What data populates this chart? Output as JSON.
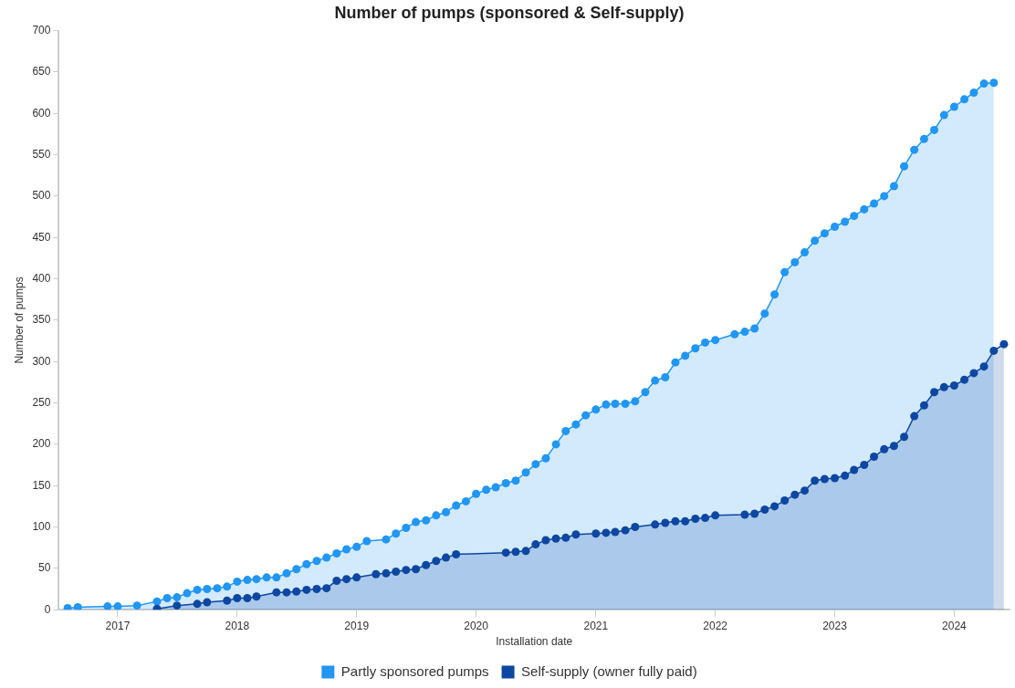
{
  "chart_data": {
    "type": "area",
    "title": "Number of pumps (sponsored & Self-supply)",
    "xlabel": "Installation date",
    "ylabel": "Number of pumps",
    "xlim": [
      "2016-07-05",
      "2024-06-18"
    ],
    "xticks": [
      {
        "value": "2017",
        "label": "2017"
      },
      {
        "value": "2018",
        "label": "2018"
      },
      {
        "value": "2019",
        "label": "2019"
      },
      {
        "value": "2020",
        "label": "2020"
      },
      {
        "value": "2021",
        "label": "2021"
      },
      {
        "value": "2022",
        "label": "2022"
      },
      {
        "value": "2023",
        "label": "2023"
      },
      {
        "value": "2024",
        "label": "2024"
      }
    ],
    "ylim": [
      0,
      700
    ],
    "yticks": [
      0,
      50,
      100,
      150,
      200,
      250,
      300,
      350,
      400,
      450,
      500,
      550,
      600,
      650,
      700
    ],
    "legend": "bottom",
    "marker": "circle",
    "series": [
      {
        "name": "Partly sponsored pumps",
        "color": "#2196f3",
        "x": [
          "2016-08",
          "2016-09",
          "2016-12",
          "2017-01",
          "2017-03",
          "2017-05",
          "2017-06",
          "2017-07",
          "2017-08",
          "2017-09",
          "2017-10",
          "2017-11",
          "2017-12",
          "2018-01",
          "2018-02",
          "2018-03",
          "2018-04",
          "2018-05",
          "2018-06",
          "2018-07",
          "2018-08",
          "2018-09",
          "2018-10",
          "2018-11",
          "2018-12",
          "2019-01",
          "2019-02",
          "2019-04",
          "2019-05",
          "2019-06",
          "2019-07",
          "2019-08",
          "2019-09",
          "2019-10",
          "2019-11",
          "2019-12",
          "2020-01",
          "2020-02",
          "2020-03",
          "2020-04",
          "2020-05",
          "2020-06",
          "2020-07",
          "2020-08",
          "2020-09",
          "2020-10",
          "2020-11",
          "2020-12",
          "2021-01",
          "2021-02",
          "2021-03",
          "2021-04",
          "2021-05",
          "2021-06",
          "2021-07",
          "2021-08",
          "2021-09",
          "2021-10",
          "2021-11",
          "2021-12",
          "2022-01",
          "2022-03",
          "2022-04",
          "2022-05",
          "2022-06",
          "2022-07",
          "2022-08",
          "2022-09",
          "2022-10",
          "2022-11",
          "2022-12",
          "2023-01",
          "2023-02",
          "2023-03",
          "2023-04",
          "2023-05",
          "2023-06",
          "2023-07",
          "2023-08",
          "2023-09",
          "2023-10",
          "2023-11",
          "2023-12",
          "2024-01",
          "2024-02",
          "2024-03",
          "2024-04",
          "2024-05"
        ],
        "values": [
          2,
          3,
          4,
          4,
          5,
          10,
          14,
          15,
          20,
          24,
          25,
          26,
          28,
          34,
          36,
          37,
          39,
          39,
          44,
          49,
          55,
          59,
          63,
          68,
          73,
          76,
          83,
          85,
          92,
          99,
          106,
          108,
          114,
          118,
          126,
          131,
          140,
          145,
          148,
          153,
          156,
          166,
          176,
          183,
          200,
          216,
          224,
          235,
          242,
          248,
          249,
          249,
          252,
          263,
          277,
          281,
          299,
          307,
          316,
          323,
          326,
          333,
          336,
          340,
          358,
          381,
          408,
          420,
          432,
          446,
          455,
          463,
          469,
          476,
          484,
          491,
          500,
          512,
          536,
          556,
          569,
          580,
          598,
          608,
          617,
          625,
          636,
          637
        ]
      },
      {
        "name": "Self-supply (owner fully paid)",
        "color": "#0d47a1",
        "x": [
          "2017-05",
          "2017-07",
          "2017-09",
          "2017-10",
          "2017-12",
          "2018-01",
          "2018-02",
          "2018-03",
          "2018-05",
          "2018-06",
          "2018-07",
          "2018-08",
          "2018-09",
          "2018-10",
          "2018-11",
          "2018-12",
          "2019-01",
          "2019-03",
          "2019-04",
          "2019-05",
          "2019-06",
          "2019-07",
          "2019-08",
          "2019-09",
          "2019-10",
          "2019-11",
          "2020-04",
          "2020-05",
          "2020-06",
          "2020-07",
          "2020-08",
          "2020-09",
          "2020-10",
          "2020-11",
          "2021-01",
          "2021-02",
          "2021-03",
          "2021-04",
          "2021-05",
          "2021-07",
          "2021-08",
          "2021-09",
          "2021-10",
          "2021-11",
          "2021-12",
          "2022-01",
          "2022-04",
          "2022-05",
          "2022-06",
          "2022-07",
          "2022-08",
          "2022-09",
          "2022-10",
          "2022-11",
          "2022-12",
          "2023-01",
          "2023-02",
          "2023-03",
          "2023-04",
          "2023-05",
          "2023-06",
          "2023-07",
          "2023-08",
          "2023-09",
          "2023-10",
          "2023-11",
          "2023-12",
          "2024-01",
          "2024-02",
          "2024-03",
          "2024-04",
          "2024-05",
          "2024-06"
        ],
        "values": [
          1,
          5,
          7,
          9,
          11,
          14,
          14,
          16,
          21,
          21,
          22,
          24,
          25,
          26,
          35,
          37,
          39,
          43,
          44,
          46,
          48,
          49,
          54,
          59,
          63,
          67,
          69,
          70,
          71,
          79,
          84,
          86,
          87,
          91,
          92,
          93,
          94,
          96,
          100,
          103,
          105,
          107,
          107,
          110,
          111,
          114,
          115,
          116,
          121,
          125,
          132,
          139,
          144,
          156,
          158,
          159,
          162,
          169,
          175,
          185,
          194,
          198,
          209,
          234,
          247,
          263,
          269,
          271,
          278,
          286,
          294,
          313,
          321
        ]
      }
    ]
  }
}
